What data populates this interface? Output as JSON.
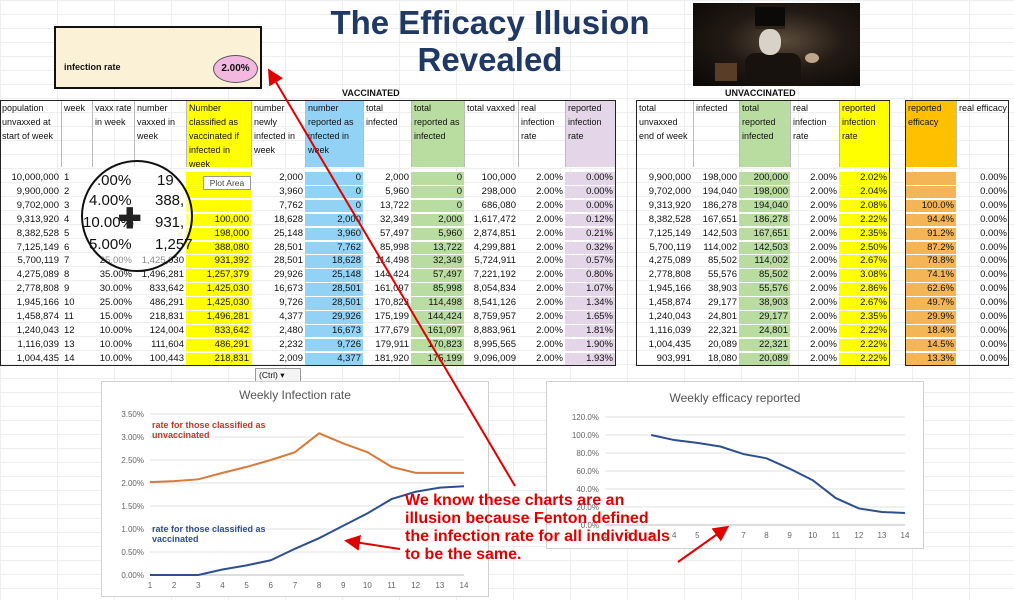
{
  "title": "The Efficacy Illusion Revealed",
  "rate_box": {
    "label": "infection rate",
    "value": "2.00%"
  },
  "sections": {
    "vaccinated": "VACCINATED",
    "unvaccinated": "UNVACCINATED"
  },
  "headers": {
    "population": "population unvaxxed at start of week",
    "week": "week",
    "vaxx_rate": "vaxx rate in week",
    "number_vaxxed": "number vaxxed in week",
    "classified": "Number classified as vaccinated if infected in week",
    "newly_infected": "number newly infected in week",
    "reported_infected": "number reported as infected in week",
    "total_infected": "total infected",
    "total_reported": "total reported as infected",
    "total_vaxxed": "total vaxxed",
    "real_rate": "real infection rate",
    "reported_rate": "reported infection rate",
    "u_total": "total unvaxxed end of week",
    "u_infected": "infected",
    "u_reported": "total reported infected",
    "u_real_rate": "real infection rate",
    "u_reported_rate": "reported infection rate",
    "reported_efficacy": "reported efficacy",
    "real_efficacy": "real efficacy"
  },
  "rows": [
    [
      "10,000,000",
      "1",
      "",
      "",
      "",
      "2,000",
      "0",
      "2,000",
      "0",
      "100,000",
      "2.00%",
      "0.00%",
      "9,900,000",
      "198,000",
      "200,000",
      "2.00%",
      "2.02%",
      "",
      "0.00%"
    ],
    [
      "9,900,000",
      "2",
      "",
      "",
      "",
      "3,960",
      "0",
      "5,960",
      "0",
      "298,000",
      "2.00%",
      "0.00%",
      "9,702,000",
      "194,040",
      "198,000",
      "2.00%",
      "2.04%",
      "",
      "0.00%"
    ],
    [
      "9,702,000",
      "3",
      "",
      "",
      "",
      "7,762",
      "0",
      "13,722",
      "0",
      "686,080",
      "2.00%",
      "0.00%",
      "9,313,920",
      "186,278",
      "194,040",
      "2.00%",
      "2.08%",
      "100.0%",
      "0.00%"
    ],
    [
      "9,313,920",
      "4",
      "",
      "",
      "100,000",
      "18,628",
      "2,000",
      "32,349",
      "2,000",
      "1,617,472",
      "2.00%",
      "0.12%",
      "8,382,528",
      "167,651",
      "186,278",
      "2.00%",
      "2.22%",
      "94.4%",
      "0.00%"
    ],
    [
      "8,382,528",
      "5",
      "",
      "",
      "198,000",
      "25,148",
      "3,960",
      "57,497",
      "5,960",
      "2,874,851",
      "2.00%",
      "0.21%",
      "7,125,149",
      "142,503",
      "167,651",
      "2.00%",
      "2.35%",
      "91.2%",
      "0.00%"
    ],
    [
      "7,125,149",
      "6",
      "",
      "",
      "388,080",
      "28,501",
      "7,762",
      "85,998",
      "13,722",
      "4,299,881",
      "2.00%",
      "0.32%",
      "5,700,119",
      "114,002",
      "142,503",
      "2.00%",
      "2.50%",
      "87.2%",
      "0.00%"
    ],
    [
      "5,700,119",
      "7",
      "25.00%",
      "1,425,030",
      "931,392",
      "28,501",
      "18,628",
      "114,498",
      "32,349",
      "5,724,911",
      "2.00%",
      "0.57%",
      "4,275,089",
      "85,502",
      "114,002",
      "2.00%",
      "2.67%",
      "78.8%",
      "0.00%"
    ],
    [
      "4,275,089",
      "8",
      "35.00%",
      "1,496,281",
      "1,257,379",
      "29,926",
      "25,148",
      "144,424",
      "57,497",
      "7,221,192",
      "2.00%",
      "0.80%",
      "2,778,808",
      "55,576",
      "85,502",
      "2.00%",
      "3.08%",
      "74.1%",
      "0.00%"
    ],
    [
      "2,778,808",
      "9",
      "30.00%",
      "833,642",
      "1,425,030",
      "16,673",
      "28,501",
      "161,097",
      "85,998",
      "8,054,834",
      "2.00%",
      "1.07%",
      "1,945,166",
      "38,903",
      "55,576",
      "2.00%",
      "2.86%",
      "62.6%",
      "0.00%"
    ],
    [
      "1,945,166",
      "10",
      "25.00%",
      "486,291",
      "1,425,030",
      "9,726",
      "28,501",
      "170,823",
      "114,498",
      "8,541,126",
      "2.00%",
      "1.34%",
      "1,458,874",
      "29,177",
      "38,903",
      "2.00%",
      "2.67%",
      "49.7%",
      "0.00%"
    ],
    [
      "1,458,874",
      "11",
      "15.00%",
      "218,831",
      "1,496,281",
      "4,377",
      "29,926",
      "175,199",
      "144,424",
      "8,759,957",
      "2.00%",
      "1.65%",
      "1,240,043",
      "24,801",
      "29,177",
      "2.00%",
      "2.35%",
      "29.9%",
      "0.00%"
    ],
    [
      "1,240,043",
      "12",
      "10.00%",
      "124,004",
      "833,642",
      "2,480",
      "16,673",
      "177,679",
      "161,097",
      "8,883,961",
      "2.00%",
      "1.81%",
      "1,116,039",
      "22,321",
      "24,801",
      "2.00%",
      "2.22%",
      "18.4%",
      "0.00%"
    ],
    [
      "1,116,039",
      "13",
      "10.00%",
      "111,604",
      "486,291",
      "2,232",
      "9,726",
      "179,911",
      "170,823",
      "8,995,565",
      "2.00%",
      "1.90%",
      "1,004,435",
      "20,089",
      "22,321",
      "2.00%",
      "2.22%",
      "14.5%",
      "0.00%"
    ],
    [
      "1,004,435",
      "14",
      "10.00%",
      "100,443",
      "218,831",
      "2,009",
      "4,377",
      "181,920",
      "175,199",
      "9,096,009",
      "2.00%",
      "1.93%",
      "903,991",
      "18,080",
      "20,089",
      "2.00%",
      "2.22%",
      "13.3%",
      "0.00%"
    ]
  ],
  "magnifier": {
    "values": [
      "19",
      "4.00%",
      "388,",
      "10.00%",
      "931,",
      "5.00%",
      "1,257"
    ],
    "first_col": ".00%"
  },
  "tooltip": {
    "plot_area": "Plot Area"
  },
  "paste_button": {
    "label": "(Ctrl) ▾"
  },
  "annotation": "We know these charts are an illusion because Fenton defined the infection rate for all individuals to be the same.",
  "chart_data": [
    {
      "type": "line",
      "title": "Weekly Infection rate",
      "x": [
        1,
        2,
        3,
        4,
        5,
        6,
        7,
        8,
        9,
        10,
        11,
        12,
        13,
        14
      ],
      "ylim": [
        0,
        3.5
      ],
      "yticks": [
        "0.00%",
        "0.50%",
        "1.00%",
        "1.50%",
        "2.00%",
        "2.50%",
        "3.00%",
        "3.50%"
      ],
      "series": [
        {
          "name": "rate for those classified as unvaccinated",
          "color": "#d97a3a",
          "values": [
            2.02,
            2.04,
            2.08,
            2.22,
            2.35,
            2.5,
            2.67,
            3.08,
            2.86,
            2.67,
            2.35,
            2.22,
            2.22,
            2.22
          ]
        },
        {
          "name": "rate for those classified as vaccinated",
          "color": "#2e4f8f",
          "values": [
            0,
            0,
            0,
            0.12,
            0.21,
            0.32,
            0.57,
            0.8,
            1.07,
            1.34,
            1.65,
            1.81,
            1.9,
            1.93
          ]
        }
      ],
      "grid": true
    },
    {
      "type": "line",
      "title": "Weekly efficacy reported",
      "x": [
        3,
        4,
        5,
        6,
        7,
        8,
        9,
        10,
        11,
        12,
        13,
        14
      ],
      "ylim": [
        0,
        120
      ],
      "yticks": [
        "0.0%",
        "20.0%",
        "40.0%",
        "60.0%",
        "80.0%",
        "100.0%",
        "120.0%"
      ],
      "series": [
        {
          "color": "#2e4f8f",
          "values": [
            100.0,
            94.4,
            91.2,
            87.2,
            78.8,
            74.1,
            62.6,
            49.7,
            29.9,
            18.4,
            14.5,
            13.3
          ]
        }
      ],
      "grid": true
    }
  ],
  "colors": {
    "title": "#1f3864",
    "annotation": "#e00000",
    "arrow": "#e00000"
  }
}
